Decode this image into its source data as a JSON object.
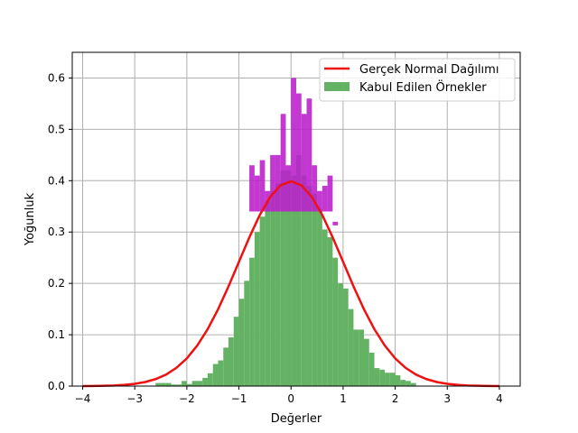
{
  "chart_data": {
    "type": "bar",
    "title": "",
    "xlabel": "Değerler",
    "ylabel": "Yoğunluk",
    "xlim": [
      -4.2,
      4.4
    ],
    "ylim": [
      0,
      0.65
    ],
    "xticks": [
      -4,
      -3,
      -2,
      -1,
      0,
      1,
      2,
      3,
      4
    ],
    "xtick_labels": [
      "−4",
      "−3",
      "−2",
      "−1",
      "0",
      "1",
      "2",
      "3",
      "4"
    ],
    "yticks": [
      0.0,
      0.1,
      0.2,
      0.3,
      0.4,
      0.5,
      0.6
    ],
    "ytick_labels": [
      "0.0",
      "0.1",
      "0.2",
      "0.3",
      "0.4",
      "0.5",
      "0.6"
    ],
    "grid": true,
    "legend_position": "top-right",
    "histogram": {
      "name": "Kabul Edilen Örnekler",
      "color": "#64b264",
      "bin_width": 0.1,
      "bin_lefts": [
        -2.6,
        -2.5,
        -2.4,
        -2.3,
        -2.2,
        -2.1,
        -2.0,
        -1.9,
        -1.8,
        -1.7,
        -1.6,
        -1.5,
        -1.4,
        -1.3,
        -1.2,
        -1.1,
        -1.0,
        -0.9,
        -0.8,
        -0.7,
        -0.6,
        -0.5,
        -0.4,
        -0.3,
        -0.2,
        -0.1,
        0.0,
        0.1,
        0.2,
        0.3,
        0.4,
        0.5,
        0.6,
        0.7,
        0.8,
        0.9,
        1.0,
        1.1,
        1.2,
        1.3,
        1.4,
        1.5,
        1.6,
        1.7,
        1.8,
        1.9,
        2.0,
        2.1,
        2.2,
        2.3
      ],
      "densities": [
        0.006,
        0.006,
        0.006,
        0.003,
        0.003,
        0.01,
        0.004,
        0.01,
        0.01,
        0.016,
        0.025,
        0.043,
        0.05,
        0.075,
        0.095,
        0.135,
        0.17,
        0.205,
        0.25,
        0.3,
        0.33,
        0.36,
        0.38,
        0.395,
        0.42,
        0.42,
        0.41,
        0.45,
        0.41,
        0.39,
        0.375,
        0.345,
        0.305,
        0.29,
        0.25,
        0.2,
        0.19,
        0.15,
        0.11,
        0.11,
        0.092,
        0.065,
        0.035,
        0.032,
        0.026,
        0.026,
        0.021,
        0.012,
        0.01,
        0.006
      ]
    },
    "overlay_bins": {
      "color": "#bb22cc",
      "bin_lefts": [
        -0.8,
        -0.7,
        -0.6,
        -0.5,
        -0.4,
        -0.3,
        -0.2,
        -0.1,
        0.0,
        0.1,
        0.2,
        0.3,
        0.4,
        0.5,
        0.6,
        0.7,
        0.8
      ],
      "densities": [
        0.43,
        0.41,
        0.44,
        0.38,
        0.45,
        0.45,
        0.53,
        0.43,
        0.6,
        0.57,
        0.53,
        0.56,
        0.43,
        0.38,
        0.39,
        0.41,
        0.32
      ]
    },
    "line_series": {
      "name": "Gerçek Normal Dağılımı",
      "color": "#ee1111",
      "x": [
        -4.0,
        -3.8,
        -3.6,
        -3.4,
        -3.2,
        -3.0,
        -2.8,
        -2.6,
        -2.4,
        -2.2,
        -2.0,
        -1.8,
        -1.6,
        -1.4,
        -1.2,
        -1.0,
        -0.8,
        -0.6,
        -0.4,
        -0.2,
        0.0,
        0.2,
        0.4,
        0.6,
        0.8,
        1.0,
        1.2,
        1.4,
        1.6,
        1.8,
        2.0,
        2.2,
        2.4,
        2.6,
        2.8,
        3.0,
        3.2,
        3.4,
        3.6,
        3.8,
        4.0
      ],
      "y": [
        0.0001,
        0.0003,
        0.0006,
        0.0012,
        0.0024,
        0.0044,
        0.0079,
        0.0136,
        0.0224,
        0.0355,
        0.054,
        0.079,
        0.1109,
        0.1497,
        0.1942,
        0.242,
        0.2897,
        0.3332,
        0.3683,
        0.391,
        0.3989,
        0.391,
        0.3683,
        0.3332,
        0.2897,
        0.242,
        0.1942,
        0.1497,
        0.1109,
        0.079,
        0.054,
        0.0355,
        0.0224,
        0.0136,
        0.0079,
        0.0044,
        0.0024,
        0.0012,
        0.0006,
        0.0003,
        0.0001
      ]
    }
  }
}
